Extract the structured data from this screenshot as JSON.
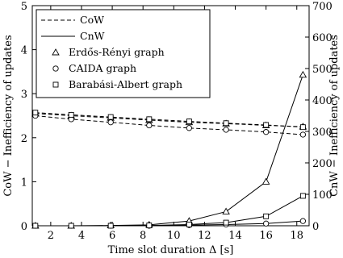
{
  "chart_data": {
    "type": "line",
    "xlabel": "Time slot duration Δ [s]",
    "ylabel_left": "CoW − Inefficiency of updates",
    "ylabel_right": "CnW − Inefficiency of updates",
    "xlim": [
      0.8,
      18.8
    ],
    "ylim_left": [
      0,
      5
    ],
    "ylim_right": [
      0,
      700
    ],
    "xticks": [
      "2",
      "4",
      "6",
      "8",
      "10",
      "12",
      "14",
      "16",
      "18"
    ],
    "yticks_left": [
      "0",
      "1",
      "2",
      "3",
      "4",
      "5"
    ],
    "yticks_right": [
      "0",
      "100",
      "200",
      "300",
      "400",
      "500",
      "600",
      "700"
    ],
    "legend": {
      "position": "top-left",
      "line_entries": [
        {
          "label": "CoW",
          "style": "dashed"
        },
        {
          "label": "CnW",
          "style": "solid"
        }
      ],
      "marker_entries": [
        {
          "label": "Erdős-Rényi graph",
          "marker": "triangle"
        },
        {
          "label": "CAIDA graph",
          "marker": "circle"
        },
        {
          "label": "Barabási-Albert graph",
          "marker": "square"
        }
      ]
    },
    "x": [
      1,
      3.33,
      5.9,
      8.4,
      11,
      13.4,
      16,
      18.4
    ],
    "series": [
      {
        "name": "Erdős-Rényi graph",
        "metric": "CoW",
        "axis": "left",
        "marker": "triangle",
        "values": [
          2.55,
          2.5,
          2.45,
          2.4,
          2.35,
          2.32,
          2.28,
          2.25
        ]
      },
      {
        "name": "CAIDA graph",
        "metric": "CoW",
        "axis": "left",
        "marker": "circle",
        "values": [
          2.5,
          2.42,
          2.35,
          2.28,
          2.22,
          2.18,
          2.13,
          2.07
        ]
      },
      {
        "name": "Barabási-Albert graph",
        "metric": "CoW",
        "axis": "left",
        "marker": "square",
        "values": [
          2.57,
          2.52,
          2.47,
          2.42,
          2.37,
          2.33,
          2.29,
          2.24
        ]
      },
      {
        "name": "Erdős-Rényi graph",
        "metric": "CnW",
        "axis": "right",
        "marker": "triangle",
        "values": [
          0,
          0,
          1,
          3,
          15,
          45,
          140,
          480
        ]
      },
      {
        "name": "CAIDA graph",
        "metric": "CnW",
        "axis": "right",
        "marker": "circle",
        "values": [
          0,
          0,
          0,
          0,
          2,
          4,
          7,
          15
        ]
      },
      {
        "name": "Barabási-Albert graph",
        "metric": "CnW",
        "axis": "right",
        "marker": "square",
        "values": [
          0,
          0,
          0,
          1,
          4,
          10,
          30,
          95
        ]
      }
    ]
  }
}
